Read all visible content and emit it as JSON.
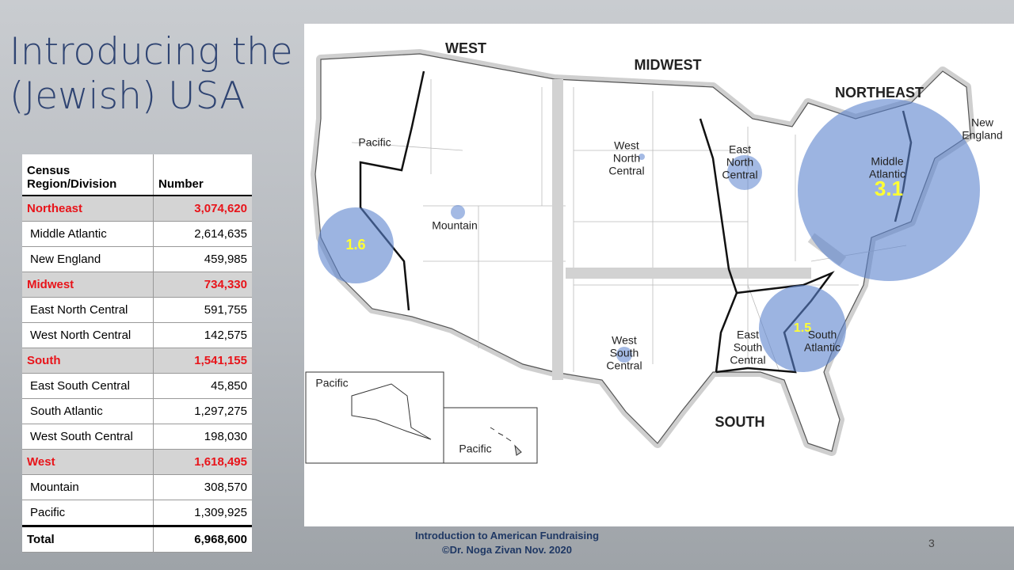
{
  "title": [
    "Introducing the",
    "(Jewish) USA"
  ],
  "table": {
    "header": [
      "Census Region/Division",
      "Number"
    ],
    "regions": [
      {
        "name": "Northeast",
        "number": "3,074,620",
        "divisions": [
          {
            "name": "Middle Atlantic",
            "number": "2,614,635"
          },
          {
            "name": "New England",
            "number": "459,985"
          }
        ]
      },
      {
        "name": "Midwest",
        "number": "734,330",
        "divisions": [
          {
            "name": "East North Central",
            "number": "591,755"
          },
          {
            "name": "West North Central",
            "number": "142,575"
          }
        ]
      },
      {
        "name": "South",
        "number": "1,541,155",
        "divisions": [
          {
            "name": "East South Central",
            "number": "45,850"
          },
          {
            "name": "South Atlantic",
            "number": "1,297,275"
          },
          {
            "name": "West South Central",
            "number": "198,030"
          }
        ]
      },
      {
        "name": "West",
        "number": "1,618,495",
        "divisions": [
          {
            "name": "Mountain",
            "number": "308,570"
          },
          {
            "name": "Pacific",
            "number": "1,309,925"
          }
        ]
      }
    ],
    "total": [
      "Total",
      "6,968,600"
    ]
  },
  "map": {
    "labels": [
      [
        "WEST"
      ],
      [
        "MIDWEST"
      ],
      [
        "NORTHEAST"
      ],
      [
        "SOUTH"
      ],
      [
        "Pacific"
      ],
      [
        "Mountain"
      ],
      [
        "West",
        "North",
        "Central"
      ],
      [
        "East",
        "North",
        "Central"
      ],
      [
        "Middle",
        "Atlantic"
      ],
      [
        "New",
        "England"
      ],
      [
        "West",
        "South",
        "Central"
      ],
      [
        "East",
        "South",
        "Central"
      ],
      [
        "South",
        "Atlantic"
      ],
      [
        "Pacific"
      ],
      [
        "Pacific"
      ]
    ],
    "bubbles": [
      "1.6",
      "3.1",
      "1.5"
    ]
  },
  "footer": [
    "Introduction to  American Fundraising",
    "©Dr. Noga Zivan Nov. 2020"
  ],
  "page_number": "3"
}
